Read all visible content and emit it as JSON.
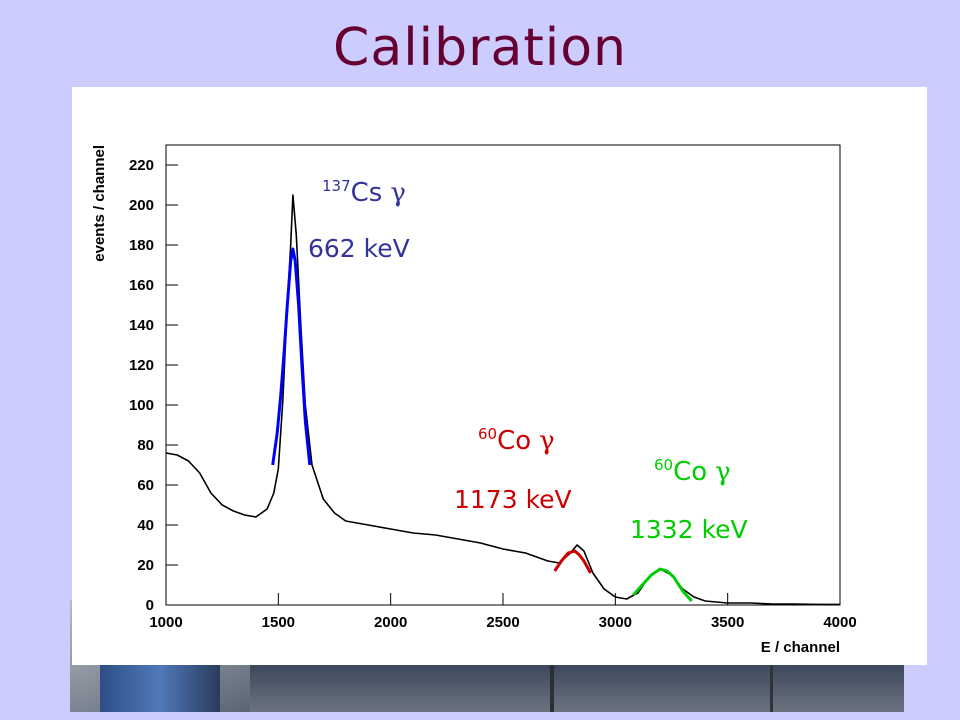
{
  "slide": {
    "title": "Calibration"
  },
  "chart_data": {
    "type": "line",
    "xlabel": "E / channel",
    "ylabel": "events / channel",
    "xlim": [
      1000,
      4000
    ],
    "ylim": [
      0,
      230
    ],
    "x_ticks": [
      1000,
      1500,
      2000,
      2500,
      3000,
      3500,
      4000
    ],
    "y_ticks": [
      0,
      20,
      40,
      60,
      80,
      100,
      120,
      140,
      160,
      180,
      200,
      220
    ],
    "grid": false,
    "series": [
      {
        "color": "#000000",
        "x": [
          1000,
          1050,
          1100,
          1150,
          1200,
          1250,
          1300,
          1350,
          1400,
          1450,
          1480,
          1500,
          1520,
          1540,
          1555,
          1565,
          1580,
          1600,
          1620,
          1650,
          1700,
          1750,
          1800,
          1900,
          2000,
          2100,
          2200,
          2300,
          2400,
          2500,
          2600,
          2700,
          2750,
          2800,
          2830,
          2860,
          2900,
          2950,
          3000,
          3050,
          3100,
          3150,
          3200,
          3250,
          3300,
          3350,
          3400,
          3500,
          3600,
          3700,
          3800,
          3900,
          4000
        ],
        "y": [
          76,
          75,
          72,
          66,
          56,
          50,
          47,
          45,
          44,
          48,
          56,
          68,
          102,
          150,
          180,
          205,
          185,
          140,
          100,
          70,
          53,
          46,
          42,
          40,
          38,
          36,
          35,
          33,
          31,
          28,
          26,
          22,
          21,
          26,
          30,
          27,
          16,
          8,
          4,
          3,
          6,
          14,
          18,
          15,
          8,
          4,
          2,
          1,
          1,
          0.5,
          0.5,
          0.3,
          0.3
        ]
      },
      {
        "color": "#0000ff",
        "x": [
          1475,
          1495,
          1510,
          1525,
          1540,
          1555,
          1565,
          1575,
          1590,
          1605,
          1620,
          1640
        ],
        "y": [
          70,
          86,
          104,
          125,
          150,
          172,
          178,
          172,
          150,
          120,
          92,
          70
        ]
      },
      {
        "color": "#cc0000",
        "x": [
          2730,
          2760,
          2790,
          2820,
          2840,
          2860,
          2890
        ],
        "y": [
          17,
          22,
          26,
          27,
          25,
          22,
          16
        ]
      },
      {
        "color": "#00cc00",
        "x": [
          3080,
          3120,
          3160,
          3200,
          3230,
          3260,
          3300,
          3340
        ],
        "y": [
          5,
          10,
          15,
          18,
          17,
          14,
          7,
          2
        ]
      }
    ],
    "annotations": [
      {
        "mass": "137",
        "element": "Cs",
        "particle": "γ",
        "energy": "662 keV",
        "color": "#333399"
      },
      {
        "mass": "60",
        "element": "Co",
        "particle": "γ",
        "energy": "1173 keV",
        "color": "#cc0000"
      },
      {
        "mass": "60",
        "element": "Co",
        "particle": "γ",
        "energy": "1332 keV",
        "color": "#00cc00"
      }
    ]
  }
}
